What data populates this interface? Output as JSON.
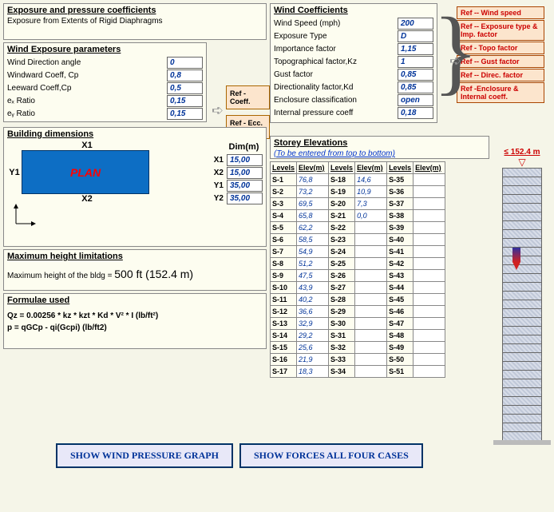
{
  "exposure_section": {
    "title": "Exposure and pressure coefficients",
    "subtitle": "Exposure from Extents of Rigid Diaphragms"
  },
  "wind_coeffs": {
    "title": "Wind Coefficients",
    "rows": [
      {
        "label": "Wind Speed  (mph)",
        "val": "200"
      },
      {
        "label": "Exposure Type",
        "val": "D"
      },
      {
        "label": "Importance factor",
        "val": "1,15"
      },
      {
        "label": "Topographical factor,Kz",
        "val": "1"
      },
      {
        "label": "Gust factor",
        "val": "0,85"
      },
      {
        "label": "Directionality factor,Kd",
        "val": "0,85"
      },
      {
        "label": "Enclosure classification",
        "val": "open"
      },
      {
        "label": "Internal pressure coeff",
        "val": "0,18"
      }
    ]
  },
  "wind_exposure": {
    "title": "Wind Exposure parameters",
    "rows": [
      {
        "label": "Wind Direction angle",
        "val": "0"
      },
      {
        "label": "Windward Coeff, Cp",
        "val": "0,8"
      },
      {
        "label": "Leeward Coeff,Cp",
        "val": "0,5"
      },
      {
        "label": "eₓ Ratio",
        "val": "0,15"
      },
      {
        "label": "eᵧ Ratio",
        "val": "0,15"
      }
    ]
  },
  "mid_refs": {
    "r1": "Ref - Coeff.",
    "r2": "Ref - Ecc. Ratio"
  },
  "right_refs": [
    "Ref -- Wind speed",
    "Ref -- Exposure type & Imp. factor",
    "Ref - Topo factor",
    "Ref -- Gust factor",
    "Ref -- Direc. factor",
    "Ref -Enclosure & Internal coeff."
  ],
  "building": {
    "title": "Building dimensions",
    "plan": "PLAN",
    "x1": "X1",
    "x2": "X2",
    "y1": "Y1",
    "dim_header": "Dim(m)",
    "dims": [
      {
        "l": "X1",
        "v": "15,00"
      },
      {
        "l": "X2",
        "v": "15,00"
      },
      {
        "l": "Y1",
        "v": "35,00"
      },
      {
        "l": "Y2",
        "v": "35,00"
      }
    ]
  },
  "max_height": {
    "title": "Maximum height limitations",
    "text_prefix": "Maximum height of the bldg = ",
    "text_value": "500 ft (152.4 m)"
  },
  "formulae": {
    "title": "Formulae used",
    "f1": "Qz = 0.00256 * kz * kzt * Kd * V² * I (lb/ft²)",
    "f2": "p = qGCp - qi(Gcpi)   (lb/ft2)"
  },
  "storey": {
    "title": "Storey Elevations",
    "sub": "(To be entered from top to bottom)",
    "col": "Levels",
    "col2": "Elev(m)",
    "block1": [
      [
        "S-1",
        "76,8"
      ],
      [
        "S-2",
        "73,2"
      ],
      [
        "S-3",
        "69,5"
      ],
      [
        "S-4",
        "65,8"
      ],
      [
        "S-5",
        "62,2"
      ],
      [
        "S-6",
        "58,5"
      ],
      [
        "S-7",
        "54,9"
      ],
      [
        "S-8",
        "51,2"
      ],
      [
        "S-9",
        "47,5"
      ],
      [
        "S-10",
        "43,9"
      ],
      [
        "S-11",
        "40,2"
      ],
      [
        "S-12",
        "36,6"
      ],
      [
        "S-13",
        "32,9"
      ],
      [
        "S-14",
        "29,2"
      ],
      [
        "S-15",
        "25,6"
      ],
      [
        "S-16",
        "21,9"
      ],
      [
        "S-17",
        "18,3"
      ]
    ],
    "block2": [
      [
        "S-18",
        "14,6"
      ],
      [
        "S-19",
        "10,9"
      ],
      [
        "S-20",
        "7,3"
      ],
      [
        "S-21",
        "0,0"
      ],
      [
        "S-22",
        ""
      ],
      [
        "S-23",
        ""
      ],
      [
        "S-24",
        ""
      ],
      [
        "S-25",
        ""
      ],
      [
        "S-26",
        ""
      ],
      [
        "S-27",
        ""
      ],
      [
        "S-28",
        ""
      ],
      [
        "S-29",
        ""
      ],
      [
        "S-30",
        ""
      ],
      [
        "S-31",
        ""
      ],
      [
        "S-32",
        ""
      ],
      [
        "S-33",
        ""
      ],
      [
        "S-34",
        ""
      ]
    ],
    "block3": [
      [
        "S-35",
        ""
      ],
      [
        "S-36",
        ""
      ],
      [
        "S-37",
        ""
      ],
      [
        "S-38",
        ""
      ],
      [
        "S-39",
        ""
      ],
      [
        "S-40",
        ""
      ],
      [
        "S-41",
        ""
      ],
      [
        "S-42",
        ""
      ],
      [
        "S-43",
        ""
      ],
      [
        "S-44",
        ""
      ],
      [
        "S-45",
        ""
      ],
      [
        "S-46",
        ""
      ],
      [
        "S-47",
        ""
      ],
      [
        "S-48",
        ""
      ],
      [
        "S-49",
        ""
      ],
      [
        "S-50",
        ""
      ],
      [
        "S-51",
        ""
      ]
    ]
  },
  "tower": {
    "limit": "≤  152.4 m",
    "floors": 31
  },
  "buttons": {
    "b1": "SHOW WIND PRESSURE GRAPH",
    "b2": "SHOW FORCES ALL FOUR CASES"
  }
}
